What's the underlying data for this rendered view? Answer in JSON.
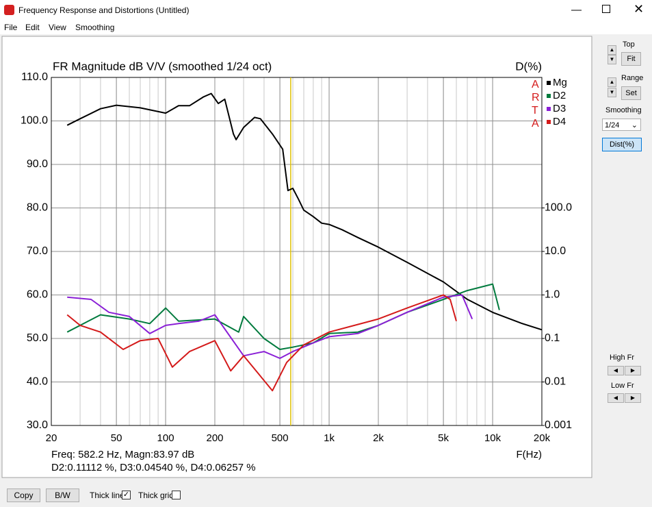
{
  "window": {
    "title": "Frequency Response and Distortions (Untitled)",
    "menu": [
      "File",
      "Edit",
      "View",
      "Smoothing"
    ],
    "side_panel": {
      "top_label": "Top",
      "fit_button": "Fit",
      "range_label": "Range",
      "set_button": "Set",
      "smoothing_label": "Smoothing",
      "smoothing_value": "1/24",
      "dist_button": "Dist(%)",
      "high_fr_label": "High Fr",
      "low_fr_label": "Low Fr"
    },
    "bottom_bar": {
      "copy_button": "Copy",
      "bw_button": "B/W",
      "thick_line": "Thick line",
      "thick_grid": "Thick grid"
    }
  },
  "chart_data": {
    "type": "line",
    "title": "FR Magnitude dB V/V (smoothed 1/24 oct)",
    "y2_label": "D(%)",
    "x_label": "F(Hz)",
    "watermark": "ARTA",
    "xlim": [
      20,
      20000
    ],
    "xscale": "log",
    "xticks": [
      20,
      50,
      100,
      200,
      500,
      {
        "value": 1000,
        "label": "1k"
      },
      {
        "value": 2000,
        "label": "2k"
      },
      {
        "value": 5000,
        "label": "5k"
      },
      {
        "value": 10000,
        "label": "10k"
      },
      {
        "value": 20000,
        "label": "20k"
      }
    ],
    "ylim": [
      30,
      110
    ],
    "yticks": [
      {
        "value": 30,
        "label": "30.0"
      },
      {
        "value": 40,
        "label": "40.0"
      },
      {
        "value": 50,
        "label": "50.0"
      },
      {
        "value": 60,
        "label": "60.0"
      },
      {
        "value": 70,
        "label": "70.0"
      },
      {
        "value": 80,
        "label": "80.0"
      },
      {
        "value": 90,
        "label": "90.0"
      },
      {
        "value": 100,
        "label": "100.0"
      },
      {
        "value": 110,
        "label": "110.0"
      }
    ],
    "y2lim": [
      0.001,
      100000
    ],
    "y2scale": "log",
    "y2ticks": [
      0.001,
      0.01,
      0.1,
      {
        "value": 1,
        "label": "1.0"
      },
      {
        "value": 10,
        "label": "10.0"
      },
      {
        "value": 100,
        "label": "100.0"
      }
    ],
    "grid": true,
    "minor_grid": true,
    "series": [
      {
        "name": "Mg",
        "color": "#000000",
        "x": [
          25,
          30,
          40,
          50,
          70,
          100,
          120,
          140,
          170,
          190,
          210,
          230,
          260,
          270,
          300,
          350,
          380,
          450,
          520,
          560,
          600,
          650,
          700,
          800,
          900,
          1000,
          1200,
          1500,
          2000,
          3000,
          5000,
          7000,
          10000,
          15000,
          20000
        ],
        "values": [
          99,
          100.5,
          102.8,
          103.6,
          103,
          101.8,
          103.5,
          103.5,
          105.5,
          106.3,
          104,
          105,
          97,
          95.7,
          98.5,
          100.8,
          100.5,
          97,
          93.5,
          84,
          84.5,
          82,
          79.5,
          78,
          76.5,
          76.2,
          75,
          73.2,
          71,
          67.5,
          63,
          59,
          56,
          53.5,
          52
        ]
      },
      {
        "name": "D2",
        "color": "#007a3d",
        "axis": "y2",
        "x": [
          25,
          40,
          60,
          80,
          100,
          120,
          200,
          280,
          300,
          400,
          500,
          600,
          800,
          1000,
          1500,
          2000,
          3000,
          5000,
          7000,
          10000,
          11000
        ],
        "values": [
          0.14,
          0.35,
          0.28,
          0.22,
          0.5,
          0.25,
          0.28,
          0.14,
          0.32,
          0.1,
          0.056,
          0.063,
          0.079,
          0.13,
          0.14,
          0.2,
          0.4,
          0.79,
          1.26,
          1.78,
          0.45
        ]
      },
      {
        "name": "D3",
        "color": "#8a1fd6",
        "axis": "y2",
        "x": [
          25,
          35,
          45,
          60,
          80,
          100,
          120,
          160,
          200,
          300,
          400,
          500,
          600,
          800,
          1000,
          1500,
          2000,
          3000,
          5000,
          6500,
          7500
        ],
        "values": [
          0.89,
          0.79,
          0.4,
          0.32,
          0.13,
          0.2,
          0.22,
          0.25,
          0.35,
          0.04,
          0.05,
          0.035,
          0.05,
          0.079,
          0.11,
          0.13,
          0.2,
          0.4,
          0.89,
          1.0,
          0.28
        ]
      },
      {
        "name": "D4",
        "color": "#d41a1a",
        "axis": "y2",
        "x": [
          25,
          30,
          40,
          55,
          70,
          90,
          110,
          140,
          200,
          250,
          300,
          450,
          550,
          700,
          1000,
          2000,
          3000,
          5000,
          5500,
          6000
        ],
        "values": [
          0.35,
          0.2,
          0.14,
          0.056,
          0.089,
          0.1,
          0.022,
          0.05,
          0.089,
          0.018,
          0.04,
          0.0063,
          0.028,
          0.071,
          0.14,
          0.28,
          0.5,
          1.0,
          0.79,
          0.25
        ]
      }
    ],
    "cursor": {
      "x": 582.2,
      "color": "#e0c000",
      "readout": [
        "Freq: 582.2 Hz, Magn:83.97 dB",
        "D2:0.11112 %, D3:0.04540 %, D4:0.06257 %"
      ]
    }
  }
}
